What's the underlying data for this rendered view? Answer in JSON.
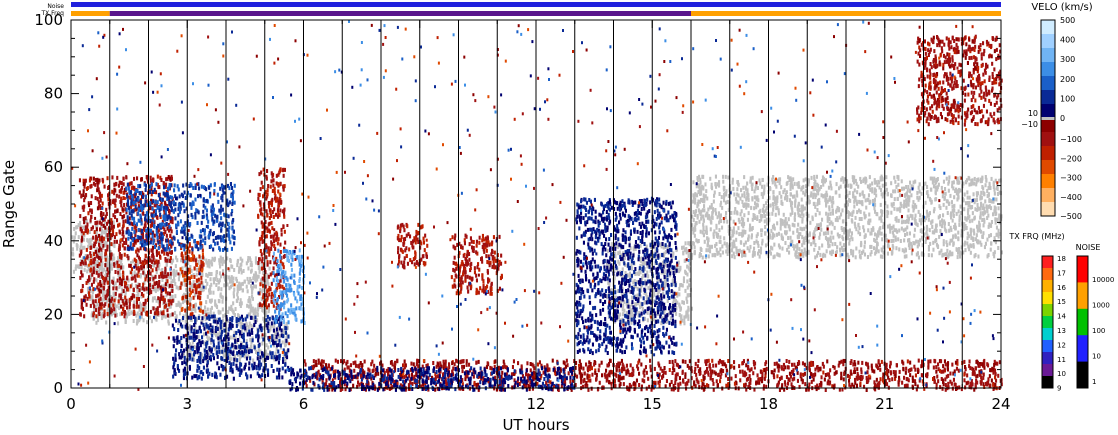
{
  "chart_data": {
    "type": "heatmap",
    "title": "",
    "xlabel": "UT hours",
    "ylabel": "Range Gate",
    "xlim": [
      0,
      24
    ],
    "ylim": [
      0,
      100
    ],
    "x_ticks": [
      0,
      3,
      6,
      9,
      12,
      15,
      18,
      21,
      24
    ],
    "y_ticks": [
      0,
      20,
      40,
      60,
      80,
      100
    ],
    "x_tick_labels": [
      "0",
      "3",
      "6",
      "9",
      "12",
      "15",
      "18",
      "21",
      "24"
    ],
    "y_tick_labels": [
      "0",
      "20",
      "40",
      "60",
      "80",
      "100"
    ],
    "scan_boundaries_ut": [
      1,
      2,
      3,
      4,
      5,
      6,
      7,
      8,
      9,
      10,
      11,
      12,
      13,
      14,
      15,
      16,
      17,
      18,
      19,
      20,
      21,
      22,
      23
    ],
    "top_strips": {
      "noise_label": "Noise",
      "txfreq_label": "TX Freq",
      "noise_color": "#2020dd",
      "txfreq_segments": [
        {
          "from": 0,
          "to": 1,
          "color": "#ffa000"
        },
        {
          "from": 1,
          "to": 16,
          "color": "#5a168c"
        },
        {
          "from": 16,
          "to": 24,
          "color": "#ffa000"
        }
      ]
    },
    "velocity_scale": {
      "label": "VELO (km/s)",
      "ticks": [
        "500",
        "400",
        "300",
        "200",
        "100",
        "0",
        "−100",
        "−200",
        "−300",
        "−400",
        "−500"
      ],
      "tick_values": [
        500,
        400,
        300,
        200,
        100,
        0,
        -100,
        -200,
        -300,
        -400,
        -500
      ],
      "ground_scatter_ticks": [
        "10",
        "−10"
      ],
      "colors": [
        "#d0ecff",
        "#a0d0ff",
        "#70b4f4",
        "#3c8ee6",
        "#1a5fc8",
        "#0a2a96",
        "#000070",
        "#8c0000",
        "#a01010",
        "#c02000",
        "#e04a00",
        "#ff8000",
        "#ffb060",
        "#ffdcb0"
      ]
    },
    "txfreq_scale": {
      "label": "TX FRQ (MHz)",
      "ticks": [
        "18",
        "17",
        "16",
        "15",
        "14",
        "13",
        "12",
        "11",
        "10",
        "9"
      ],
      "colors": [
        "#ff2020",
        "#ff6a10",
        "#ffb000",
        "#ffe000",
        "#7cd400",
        "#00d040",
        "#00d0d0",
        "#2060ff",
        "#3020c0",
        "#6a1a96",
        "#000000"
      ]
    },
    "noise_scale": {
      "label": "NOISE",
      "ticks": [
        "10000",
        "1000",
        "100",
        "10",
        "1"
      ],
      "colors": [
        "#ff0000",
        "#ffa000",
        "#00c000",
        "#2020ff",
        "#000000"
      ]
    },
    "ground_scatter_color": "#c0c0c0",
    "regions": [
      {
        "name": "ground scatter band",
        "x0": 0.0,
        "x1": 1.1,
        "y0": 32,
        "y1": 46,
        "kind": "gs"
      },
      {
        "name": "ground scatter band",
        "x0": 0.4,
        "x1": 5.1,
        "y0": 18,
        "y1": 36,
        "kind": "gs"
      },
      {
        "name": "ground scatter band",
        "x0": 2.8,
        "x1": 5.6,
        "y0": 8,
        "y1": 18,
        "kind": "gs"
      },
      {
        "name": "ground scatter band",
        "x0": 13.8,
        "x1": 16.0,
        "y0": 18,
        "y1": 40,
        "kind": "gs"
      },
      {
        "name": "ground scatter band",
        "x0": 16.0,
        "x1": 24.0,
        "y0": 36,
        "y1": 58,
        "kind": "gs"
      },
      {
        "name": "negative velocity patch",
        "x0": 0.2,
        "x1": 2.6,
        "y0": 20,
        "y1": 58,
        "v": -120
      },
      {
        "name": "negative velocity patch",
        "x0": 2.8,
        "x1": 3.4,
        "y0": 20,
        "y1": 40,
        "v": -200
      },
      {
        "name": "negative velocity patch",
        "x0": 4.8,
        "x1": 5.5,
        "y0": 22,
        "y1": 60,
        "v": -150
      },
      {
        "name": "negative velocity patch",
        "x0": 8.4,
        "x1": 9.2,
        "y0": 33,
        "y1": 45,
        "v": -140
      },
      {
        "name": "negative velocity patch",
        "x0": 9.8,
        "x1": 11.1,
        "y0": 26,
        "y1": 42,
        "v": -150
      },
      {
        "name": "negative velocity patch",
        "x0": 6.0,
        "x1": 24.0,
        "y0": 0,
        "y1": 8,
        "v": -100
      },
      {
        "name": "negative velocity patch",
        "x0": 21.8,
        "x1": 24.0,
        "y0": 72,
        "y1": 96,
        "v": -120
      },
      {
        "name": "positive velocity patch",
        "x0": 1.4,
        "x1": 4.2,
        "y0": 38,
        "y1": 56,
        "v": 150
      },
      {
        "name": "positive velocity patch",
        "x0": 2.6,
        "x1": 5.6,
        "y0": 3,
        "y1": 20,
        "v": 80
      },
      {
        "name": "positive velocity patch",
        "x0": 5.2,
        "x1": 6.0,
        "y0": 18,
        "y1": 38,
        "v": 300
      },
      {
        "name": "positive velocity patch",
        "x0": 5.6,
        "x1": 13.0,
        "y0": 0,
        "y1": 6,
        "v": 60
      },
      {
        "name": "positive velocity patch",
        "x0": 13.0,
        "x1": 15.6,
        "y0": 10,
        "y1": 52,
        "v": 70
      }
    ]
  }
}
